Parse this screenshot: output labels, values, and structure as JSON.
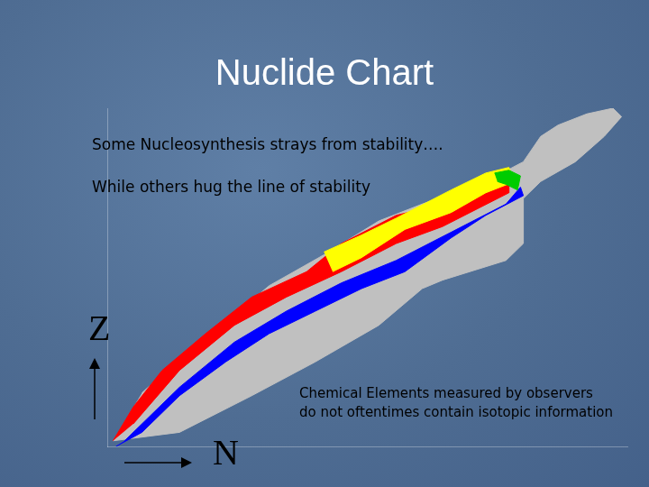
{
  "chart_data": {
    "type": "area",
    "title": "Nuclide Chart",
    "xlabel": "N",
    "ylabel": "Z",
    "xlim": [
      0,
      180
    ],
    "ylim": [
      0,
      120
    ],
    "grid": false,
    "tick_labels": false,
    "series": [
      {
        "color": "#c0c0c0",
        "x": [
          2,
          25,
          50,
          72,
          94,
          109,
          116,
          138,
          144,
          144,
          150,
          162,
          172,
          178,
          175,
          166,
          156,
          150,
          144,
          131,
          109,
          94,
          75,
          56,
          41,
          25,
          12
        ],
        "values": [
          2,
          5,
          18,
          30,
          43,
          56,
          59,
          66,
          72,
          88,
          94,
          101,
          110,
          117,
          120,
          118,
          114,
          110,
          101,
          94,
          86,
          80,
          68,
          57,
          44,
          31,
          19
        ]
      },
      {
        "color": "#ff0000",
        "x": [
          2,
          9,
          19,
          34,
          50,
          69,
          81,
          100,
          112,
          131,
          139,
          139,
          116,
          100,
          81,
          62,
          44,
          25,
          9
        ],
        "values": [
          2,
          14,
          27,
          40,
          53,
          62,
          72,
          82,
          85,
          93,
          96,
          90,
          78,
          72,
          62,
          53,
          43,
          27,
          8
        ]
      },
      {
        "color": "#0000ff",
        "x": [
          6,
          25,
          44,
          62,
          81,
          100,
          119,
          138,
          143,
          144,
          131,
          119,
          103,
          88,
          72,
          56,
          41,
          25,
          12,
          3
        ],
        "values": [
          2,
          21,
          37,
          48,
          58,
          66,
          76,
          86,
          92,
          89,
          82,
          74,
          62,
          56,
          48,
          40,
          30,
          18,
          5,
          0
        ]
      },
      {
        "color": "#ffff00",
        "x": [
          75,
          88,
          100,
          119,
          131,
          139,
          141,
          131,
          119,
          103,
          88,
          78
        ],
        "values": [
          69,
          75,
          81,
          91,
          97,
          99,
          94,
          90,
          83,
          77,
          67,
          62
        ]
      },
      {
        "color": "#00cc00",
        "x": [
          134,
          139,
          143,
          142,
          138,
          135
        ],
        "values": [
          97,
          98,
          96,
          91,
          93,
          94
        ]
      }
    ]
  },
  "annotations": [
    "Some Nucleosynthesis strays from stability….",
    "While others hug the line of stability",
    "Chemical Elements measured by observers",
    "do not oftentimes contain isotopic information"
  ]
}
